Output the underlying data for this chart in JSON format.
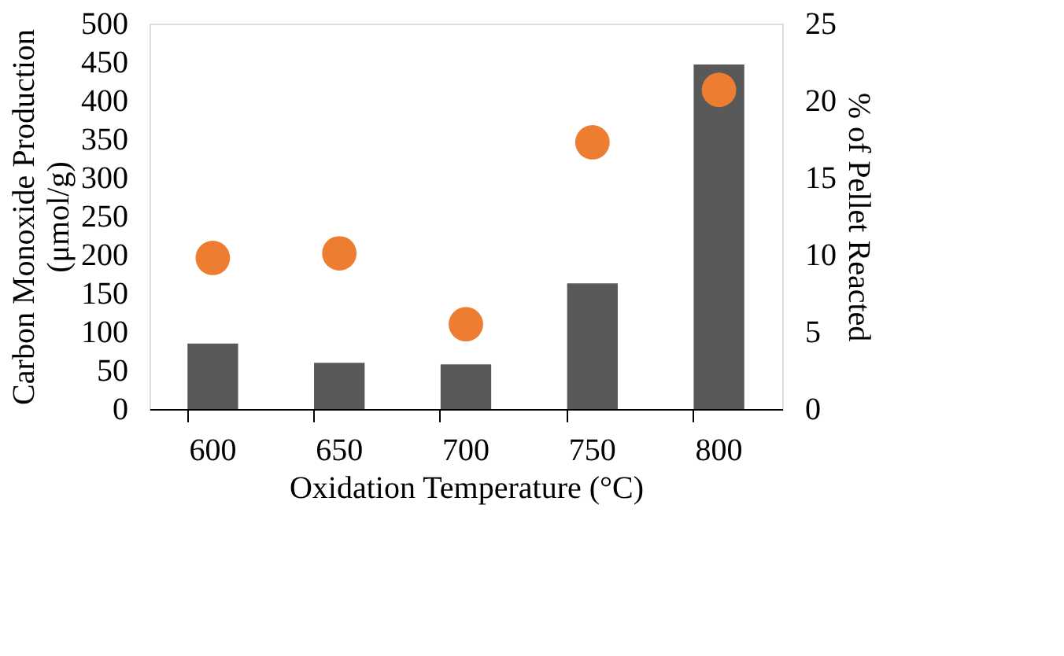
{
  "chart_data": {
    "type": "bar",
    "categories": [
      "600",
      "650",
      "700",
      "750",
      "800"
    ],
    "xlabel": "Oxidation Temperature (°C)",
    "ylabel": "Carbon Monoxide Production (μmol/g)",
    "y2label": "% of Pellet Reacted",
    "ylim": [
      0,
      500
    ],
    "yticks": [
      0,
      50,
      100,
      150,
      200,
      250,
      300,
      350,
      400,
      450,
      500
    ],
    "y2lim": [
      0,
      25
    ],
    "y2ticks": [
      0,
      5,
      10,
      15,
      20,
      25
    ],
    "grid": false,
    "series": [
      {
        "color": "#595959",
        "values": [
          85,
          60,
          58,
          163,
          447
        ]
      },
      {
        "type": "scatter",
        "axis": "y2",
        "marker": "circle",
        "color": "#ed7d31",
        "values": [
          9.8,
          10.1,
          5.5,
          17.3,
          20.7
        ]
      }
    ]
  }
}
